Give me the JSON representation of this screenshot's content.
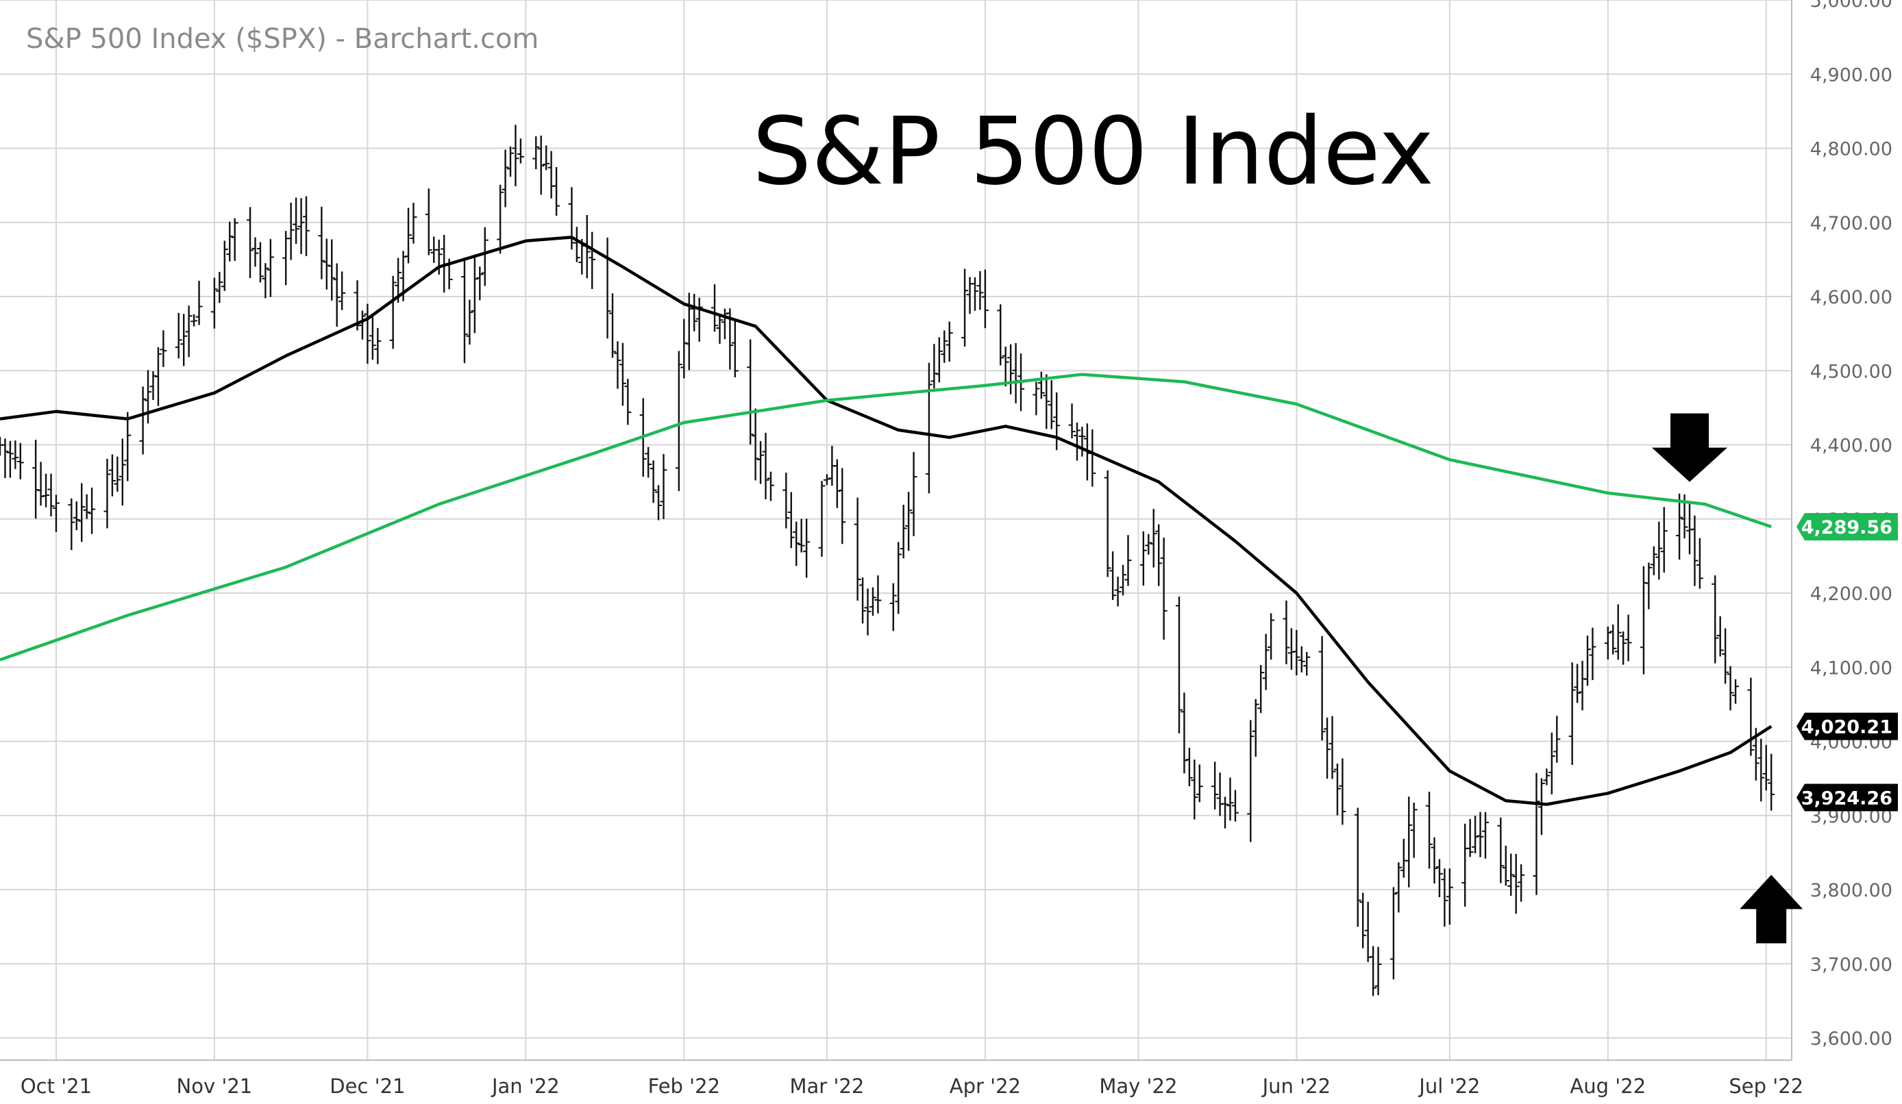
{
  "chart_data": {
    "type": "ohlc-bar",
    "source_label": "S&P 500 Index ($SPX) - Barchart.com",
    "title": "S&P 500 Index",
    "ylim": [
      3570,
      5000
    ],
    "y_ticks": [
      "5,000.00",
      "4,900.00",
      "4,800.00",
      "4,700.00",
      "4,600.00",
      "4,500.00",
      "4,400.00",
      "4,300.00",
      "4,200.00",
      "4,100.00",
      "4,000.00",
      "3,900.00",
      "3,800.00",
      "3,700.00",
      "3,600.00"
    ],
    "y_tick_values": [
      5000,
      4900,
      4800,
      4700,
      4600,
      4500,
      4400,
      4300,
      4200,
      4100,
      4000,
      3900,
      3800,
      3700,
      3600
    ],
    "x_range": [
      "2021-09-20",
      "2022-09-06"
    ],
    "x_ticks": [
      {
        "label": "Oct '21",
        "date": "2021-10-01"
      },
      {
        "label": "Nov '21",
        "date": "2021-11-01"
      },
      {
        "label": "Dec '21",
        "date": "2021-12-01"
      },
      {
        "label": "Jan '22",
        "date": "2022-01-01"
      },
      {
        "label": "Feb '22",
        "date": "2022-02-01"
      },
      {
        "label": "Mar '22",
        "date": "2022-03-01"
      },
      {
        "label": "Apr '22",
        "date": "2022-04-01"
      },
      {
        "label": "May '22",
        "date": "2022-05-01"
      },
      {
        "label": "Jun '22",
        "date": "2022-06-01"
      },
      {
        "label": "Jul '22",
        "date": "2022-07-01"
      },
      {
        "label": "Aug '22",
        "date": "2022-08-01"
      },
      {
        "label": "Sep '22",
        "date": "2022-09-01"
      }
    ],
    "grid": true,
    "price_anchors": [
      [
        "2021-09-20",
        4400
      ],
      [
        "2021-10-01",
        4320
      ],
      [
        "2021-10-04",
        4300
      ],
      [
        "2021-10-13",
        4360
      ],
      [
        "2021-10-21",
        4520
      ],
      [
        "2021-11-01",
        4610
      ],
      [
        "2021-11-05",
        4700
      ],
      [
        "2021-11-10",
        4640
      ],
      [
        "2021-11-18",
        4700
      ],
      [
        "2021-11-26",
        4600
      ],
      [
        "2021-11-30",
        4560
      ],
      [
        "2021-12-03",
        4530
      ],
      [
        "2021-12-10",
        4710
      ],
      [
        "2021-12-15",
        4650
      ],
      [
        "2021-12-20",
        4560
      ],
      [
        "2021-12-29",
        4790
      ],
      [
        "2022-01-04",
        4790
      ],
      [
        "2022-01-10",
        4670
      ],
      [
        "2022-01-14",
        4660
      ],
      [
        "2022-01-20",
        4480
      ],
      [
        "2022-01-27",
        4330
      ],
      [
        "2022-02-02",
        4580
      ],
      [
        "2022-02-09",
        4570
      ],
      [
        "2022-02-14",
        4400
      ],
      [
        "2022-02-18",
        4350
      ],
      [
        "2022-02-24",
        4260
      ],
      [
        "2022-03-02",
        4380
      ],
      [
        "2022-03-08",
        4170
      ],
      [
        "2022-03-14",
        4200
      ],
      [
        "2022-03-22",
        4510
      ],
      [
        "2022-03-29",
        4630
      ],
      [
        "2022-04-06",
        4490
      ],
      [
        "2022-04-13",
        4450
      ],
      [
        "2022-04-21",
        4400
      ],
      [
        "2022-04-26",
        4200
      ],
      [
        "2022-05-04",
        4280
      ],
      [
        "2022-05-11",
        3940
      ],
      [
        "2022-05-20",
        3900
      ],
      [
        "2022-05-27",
        4150
      ],
      [
        "2022-06-03",
        4110
      ],
      [
        "2022-06-10",
        3900
      ],
      [
        "2022-06-16",
        3670
      ],
      [
        "2022-06-24",
        3910
      ],
      [
        "2022-06-30",
        3790
      ],
      [
        "2022-07-08",
        3900
      ],
      [
        "2022-07-14",
        3790
      ],
      [
        "2022-07-21",
        3990
      ],
      [
        "2022-07-29",
        4130
      ],
      [
        "2022-08-05",
        4140
      ],
      [
        "2022-08-12",
        4280
      ],
      [
        "2022-08-16",
        4300
      ],
      [
        "2022-08-22",
        4140
      ],
      [
        "2022-08-26",
        4060
      ],
      [
        "2022-08-31",
        3960
      ],
      [
        "2022-09-02",
        3924
      ]
    ],
    "series": [
      {
        "name": "",
        "color": "#000000",
        "points": [
          [
            "2021-09-20",
            4435
          ],
          [
            "2021-10-01",
            4445
          ],
          [
            "2021-10-15",
            4435
          ],
          [
            "2021-11-01",
            4470
          ],
          [
            "2021-11-15",
            4520
          ],
          [
            "2021-12-01",
            4570
          ],
          [
            "2021-12-15",
            4640
          ],
          [
            "2022-01-01",
            4675
          ],
          [
            "2022-01-10",
            4680
          ],
          [
            "2022-01-20",
            4640
          ],
          [
            "2022-02-01",
            4590
          ],
          [
            "2022-02-15",
            4560
          ],
          [
            "2022-03-01",
            4460
          ],
          [
            "2022-03-15",
            4420
          ],
          [
            "2022-03-25",
            4410
          ],
          [
            "2022-04-05",
            4425
          ],
          [
            "2022-04-15",
            4410
          ],
          [
            "2022-04-25",
            4380
          ],
          [
            "2022-05-05",
            4350
          ],
          [
            "2022-05-20",
            4270
          ],
          [
            "2022-06-01",
            4200
          ],
          [
            "2022-06-15",
            4080
          ],
          [
            "2022-07-01",
            3960
          ],
          [
            "2022-07-12",
            3920
          ],
          [
            "2022-07-20",
            3915
          ],
          [
            "2022-08-01",
            3930
          ],
          [
            "2022-08-15",
            3960
          ],
          [
            "2022-08-25",
            3985
          ],
          [
            "2022-09-02",
            4020.21
          ]
        ]
      },
      {
        "name": "",
        "color": "#1db954",
        "points": [
          [
            "2021-09-20",
            4110
          ],
          [
            "2021-10-15",
            4170
          ],
          [
            "2021-11-15",
            4235
          ],
          [
            "2021-12-15",
            4320
          ],
          [
            "2022-01-15",
            4390
          ],
          [
            "2022-02-01",
            4430
          ],
          [
            "2022-03-01",
            4460
          ],
          [
            "2022-04-01",
            4480
          ],
          [
            "2022-04-20",
            4495
          ],
          [
            "2022-05-10",
            4485
          ],
          [
            "2022-06-01",
            4455
          ],
          [
            "2022-06-15",
            4420
          ],
          [
            "2022-07-01",
            4380
          ],
          [
            "2022-08-01",
            4335
          ],
          [
            "2022-08-20",
            4320
          ],
          [
            "2022-09-02",
            4289.56
          ]
        ]
      }
    ],
    "value_tags": [
      {
        "label": "4,289.56",
        "value": 4289.56,
        "color": "#1db954"
      },
      {
        "label": "4,020.21",
        "value": 4020.21,
        "color": "#000000"
      },
      {
        "label": "3,924.26",
        "value": 3924.26,
        "color": "#000000"
      }
    ],
    "annotations": [
      {
        "type": "arrow-down",
        "date": "2022-08-17",
        "value": 4350
      },
      {
        "type": "arrow-up",
        "date": "2022-09-02",
        "value": 3820
      }
    ]
  }
}
